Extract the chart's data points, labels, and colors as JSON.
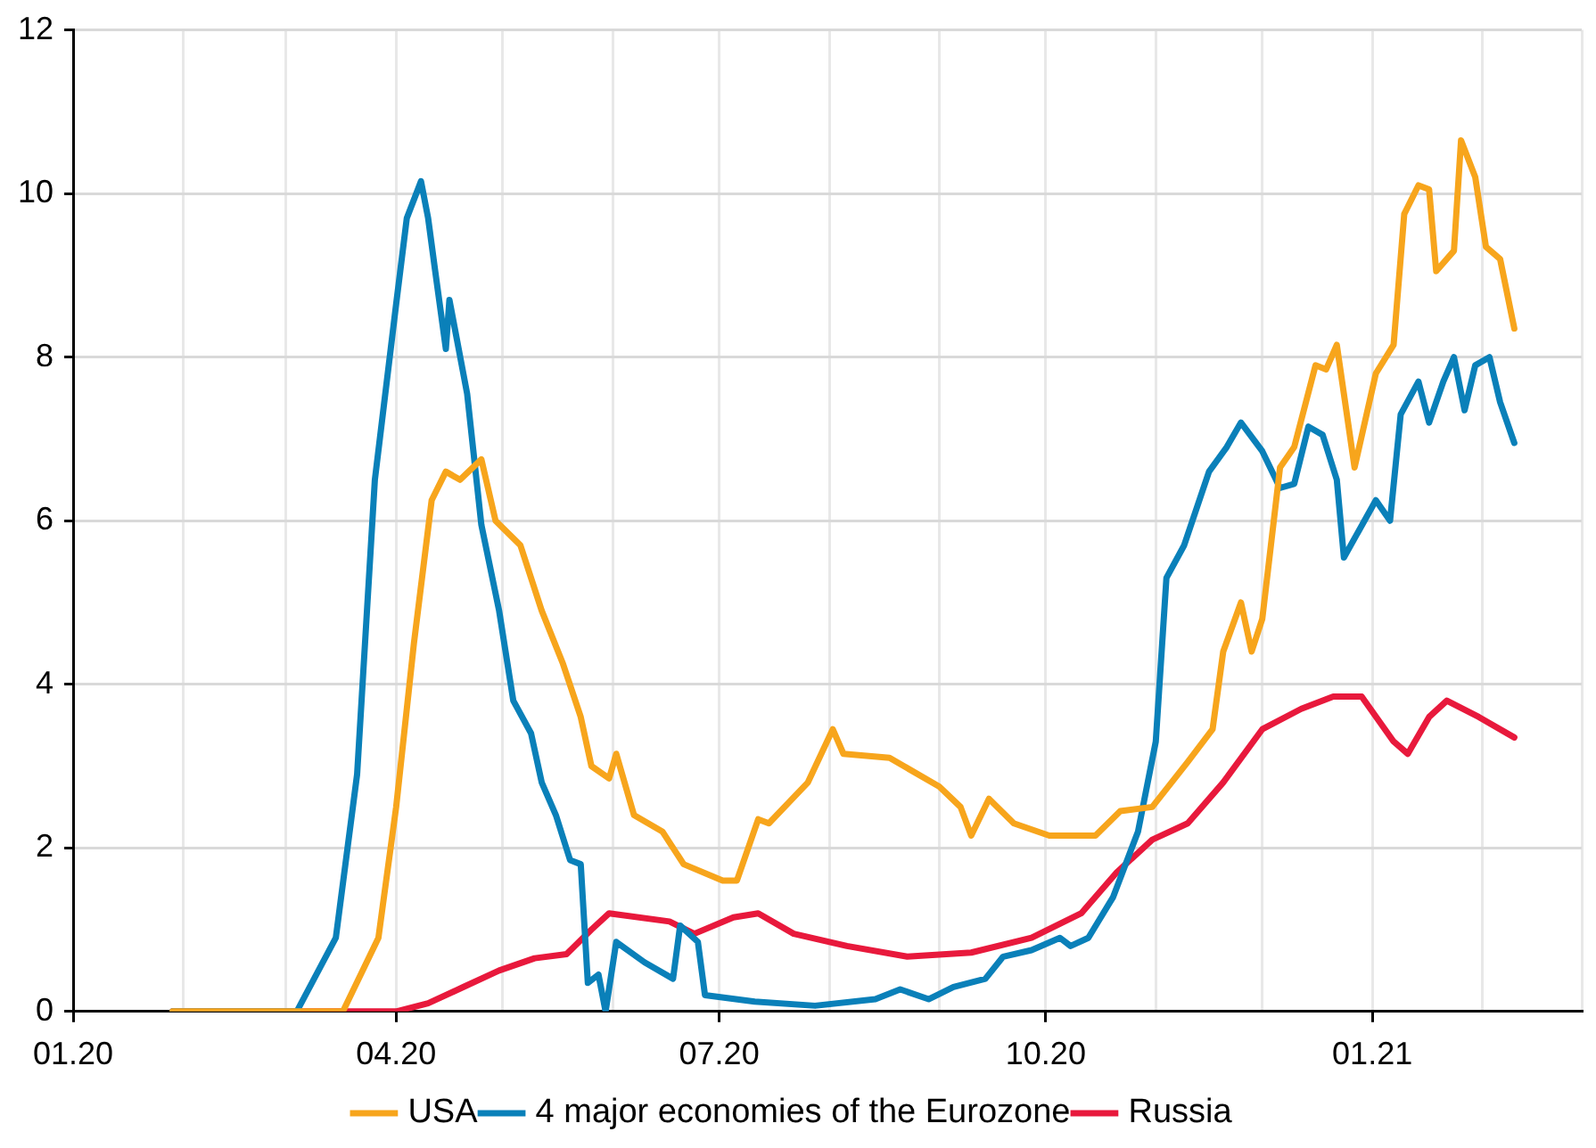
{
  "chart_data": {
    "type": "line",
    "legend": "bottom",
    "grid": true,
    "marker": "none",
    "line_style": "solid",
    "xlim": [
      "2020-01-01",
      "2021-03-01"
    ],
    "xticks": [
      {
        "value": "2020-01-01",
        "label": "01.20"
      },
      {
        "value": "2020-02-01",
        "label": null
      },
      {
        "value": "2020-03-01",
        "label": null
      },
      {
        "value": "2020-04-01",
        "label": "04.20"
      },
      {
        "value": "2020-05-01",
        "label": null
      },
      {
        "value": "2020-06-01",
        "label": null
      },
      {
        "value": "2020-07-01",
        "label": "07.20"
      },
      {
        "value": "2020-08-01",
        "label": null
      },
      {
        "value": "2020-09-01",
        "label": null
      },
      {
        "value": "2020-10-01",
        "label": "10.20"
      },
      {
        "value": "2020-11-01",
        "label": null
      },
      {
        "value": "2020-12-01",
        "label": null
      },
      {
        "value": "2021-01-01",
        "label": "01.21"
      },
      {
        "value": "2021-02-01",
        "label": null
      },
      {
        "value": "2021-03-01",
        "label": null
      }
    ],
    "ylim": [
      0,
      12
    ],
    "yticks": [
      0,
      2,
      4,
      6,
      8,
      10,
      12
    ],
    "series": [
      {
        "name": "USA",
        "color": "#f7a51c",
        "x": [
          "2020-01-29",
          "2020-03-17",
          "2020-03-27",
          "2020-04-01",
          "2020-04-06",
          "2020-04-11",
          "2020-04-15",
          "2020-04-19",
          "2020-04-25",
          "2020-04-29",
          "2020-05-06",
          "2020-05-12",
          "2020-05-18",
          "2020-05-23",
          "2020-05-26",
          "2020-05-31",
          "2020-06-02",
          "2020-06-07",
          "2020-06-15",
          "2020-06-21",
          "2020-07-02",
          "2020-07-06",
          "2020-07-12",
          "2020-07-15",
          "2020-07-26",
          "2020-08-02",
          "2020-08-05",
          "2020-08-18",
          "2020-09-01",
          "2020-09-07",
          "2020-09-10",
          "2020-09-15",
          "2020-09-22",
          "2020-10-02",
          "2020-10-15",
          "2020-10-22",
          "2020-10-31",
          "2020-11-10",
          "2020-11-17",
          "2020-11-20",
          "2020-11-25",
          "2020-11-28",
          "2020-12-01",
          "2020-12-06",
          "2020-12-10",
          "2020-12-16",
          "2020-12-19",
          "2020-12-22",
          "2020-12-27",
          "2021-01-02",
          "2021-01-07",
          "2021-01-10",
          "2021-01-14",
          "2021-01-17",
          "2021-01-19",
          "2021-01-24",
          "2021-01-26",
          "2021-01-30",
          "2021-02-02",
          "2021-02-06",
          "2021-02-10"
        ],
        "values": [
          0,
          0,
          0.9,
          2.5,
          4.5,
          6.25,
          6.6,
          6.5,
          6.75,
          6.0,
          5.7,
          4.9,
          4.25,
          3.6,
          3.0,
          2.85,
          3.15,
          2.4,
          2.2,
          1.8,
          1.6,
          1.6,
          2.35,
          2.3,
          2.8,
          3.45,
          3.15,
          3.1,
          2.75,
          2.5,
          2.15,
          2.6,
          2.3,
          2.15,
          2.15,
          2.45,
          2.5,
          3.05,
          3.45,
          4.4,
          5.0,
          4.4,
          4.8,
          6.65,
          6.9,
          7.9,
          7.85,
          8.15,
          6.65,
          7.8,
          8.15,
          9.75,
          10.1,
          10.05,
          9.05,
          9.3,
          10.65,
          10.2,
          9.35,
          9.2,
          8.35
        ]
      },
      {
        "name": "4 major economies of the Eurozone",
        "color": "#0a80b9",
        "x": [
          "2020-01-29",
          "2020-03-04",
          "2020-03-15",
          "2020-03-21",
          "2020-03-26",
          "2020-04-01",
          "2020-04-04",
          "2020-04-08",
          "2020-04-10",
          "2020-04-12",
          "2020-04-15",
          "2020-04-16",
          "2020-04-21",
          "2020-04-25",
          "2020-04-30",
          "2020-05-04",
          "2020-05-09",
          "2020-05-12",
          "2020-05-16",
          "2020-05-20",
          "2020-05-23",
          "2020-05-25",
          "2020-05-28",
          "2020-05-30",
          "2020-06-02",
          "2020-06-10",
          "2020-06-18",
          "2020-06-20",
          "2020-06-25",
          "2020-06-27",
          "2020-07-11",
          "2020-07-28",
          "2020-08-14",
          "2020-08-21",
          "2020-08-29",
          "2020-09-05",
          "2020-09-14",
          "2020-09-19",
          "2020-09-27",
          "2020-10-05",
          "2020-10-08",
          "2020-10-13",
          "2020-10-20",
          "2020-10-27",
          "2020-11-01",
          "2020-11-04",
          "2020-11-09",
          "2020-11-16",
          "2020-11-21",
          "2020-11-25",
          "2020-12-01",
          "2020-12-06",
          "2020-12-10",
          "2020-12-14",
          "2020-12-18",
          "2020-12-22",
          "2020-12-24",
          "2021-01-02",
          "2021-01-06",
          "2021-01-09",
          "2021-01-14",
          "2021-01-17",
          "2021-01-21",
          "2021-01-24",
          "2021-01-27",
          "2021-01-30",
          "2021-02-03",
          "2021-02-06",
          "2021-02-10"
        ],
        "values": [
          0,
          0,
          0.9,
          2.9,
          6.5,
          8.65,
          9.7,
          10.15,
          9.7,
          9.05,
          8.1,
          8.7,
          7.55,
          5.95,
          4.9,
          3.8,
          3.4,
          2.8,
          2.4,
          1.85,
          1.8,
          0.35,
          0.45,
          0,
          0.85,
          0.6,
          0.4,
          1.05,
          0.85,
          0.2,
          0.12,
          0.07,
          0.15,
          0.27,
          0.15,
          0.3,
          0.4,
          0.67,
          0.75,
          0.9,
          0.8,
          0.9,
          1.4,
          2.2,
          3.3,
          5.3,
          5.7,
          6.6,
          6.9,
          7.2,
          6.85,
          6.4,
          6.45,
          7.15,
          7.05,
          6.5,
          5.55,
          6.25,
          6.0,
          7.3,
          7.7,
          7.2,
          7.7,
          8.0,
          7.35,
          7.9,
          8.0,
          7.45,
          6.95
        ]
      },
      {
        "name": "Russia",
        "color": "#e8193c",
        "x": [
          "2020-01-29",
          "2020-04-01",
          "2020-04-10",
          "2020-04-20",
          "2020-04-30",
          "2020-05-10",
          "2020-05-19",
          "2020-05-26",
          "2020-05-31",
          "2020-06-17",
          "2020-06-24",
          "2020-07-05",
          "2020-07-12",
          "2020-07-22",
          "2020-08-06",
          "2020-08-23",
          "2020-09-10",
          "2020-09-27",
          "2020-10-11",
          "2020-10-21",
          "2020-10-31",
          "2020-11-10",
          "2020-11-20",
          "2020-12-01",
          "2020-12-12",
          "2020-12-21",
          "2020-12-29",
          "2021-01-07",
          "2021-01-11",
          "2021-01-17",
          "2021-01-22",
          "2021-01-31",
          "2021-02-10"
        ],
        "values": [
          0,
          0,
          0.1,
          0.3,
          0.5,
          0.65,
          0.7,
          1.0,
          1.2,
          1.1,
          0.95,
          1.15,
          1.2,
          0.95,
          0.8,
          0.67,
          0.72,
          0.9,
          1.2,
          1.7,
          2.1,
          2.3,
          2.8,
          3.45,
          3.7,
          3.85,
          3.85,
          3.3,
          3.15,
          3.6,
          3.8,
          3.6,
          3.35
        ]
      }
    ]
  }
}
